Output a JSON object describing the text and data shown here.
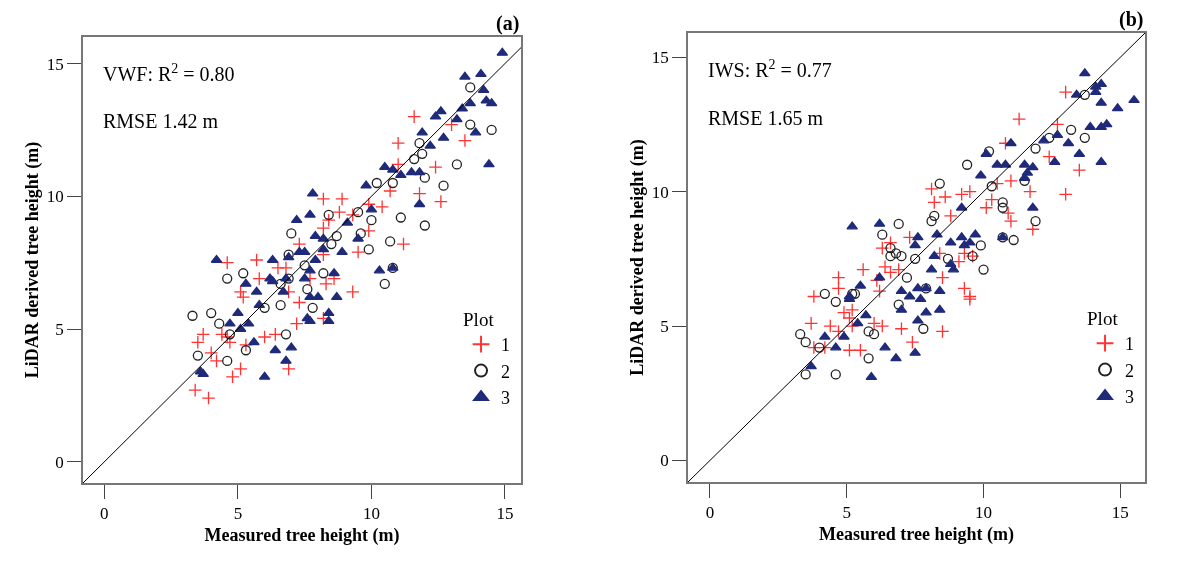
{
  "chart_data": [
    {
      "type": "scatter",
      "title": "(a)",
      "xlabel": "Measured tree height (m)",
      "ylabel": "LiDAR derived tree height (m)",
      "legend_title": "Plot",
      "legend": "bottom right",
      "annotations": [
        "VWF: R$^{2}$ = 0.80",
        "RMSE 1.42 m"
      ],
      "xlim": [
        -0.8,
        15.6
      ],
      "ylim": [
        -0.8,
        16.0
      ],
      "xticks": [
        0,
        5,
        10,
        15
      ],
      "yticks": [
        0,
        5,
        10,
        15
      ],
      "series": [
        {
          "name": "1",
          "color": "#ff3333",
          "marker": "cross",
          "x": [
            11.6,
            11.0,
            13.5,
            13.0,
            12.4,
            11.0,
            10.7,
            11.8,
            12.6,
            8.2,
            8.9,
            9.9,
            10.4,
            8.8,
            9.3,
            8.4,
            8.2,
            9.9,
            11.2,
            9.5,
            7.3,
            8.2,
            4.6,
            5.7,
            6.5,
            6.8,
            7.7,
            5.8,
            8.6,
            5.1,
            9.3,
            6.9,
            5.2,
            7.3,
            8.3,
            3.7,
            3.5,
            4.4,
            4.6,
            4.7,
            5.3,
            6.0,
            6.4,
            7.2,
            8.2,
            4.0,
            4.2,
            5.1,
            4.8,
            6.9,
            3.4,
            3.9
          ],
          "values": [
            13.0,
            12.0,
            12.1,
            12.7,
            11.1,
            11.2,
            10.2,
            10.1,
            9.8,
            9.9,
            9.9,
            9.7,
            9.6,
            9.4,
            9.3,
            9.1,
            8.8,
            8.7,
            8.2,
            7.9,
            8.2,
            7.8,
            7.5,
            7.6,
            7.3,
            7.3,
            6.9,
            6.9,
            6.9,
            6.4,
            6.4,
            6.4,
            6.2,
            6.0,
            6.7,
            4.8,
            4.5,
            4.8,
            4.7,
            4.5,
            4.4,
            4.7,
            4.8,
            5.2,
            5.4,
            4.1,
            3.8,
            3.5,
            3.2,
            3.5,
            2.7,
            2.4
          ]
        },
        {
          "name": "2",
          "color": "#222222",
          "marker": "circle",
          "x": [
            13.7,
            13.7,
            14.5,
            11.8,
            11.9,
            11.6,
            13.2,
            12.0,
            10.8,
            10.2,
            12.7,
            11.1,
            12.0,
            9.5,
            8.4,
            10.0,
            7.0,
            9.6,
            8.7,
            8.5,
            9.9,
            10.7,
            6.9,
            10.8,
            10.5,
            4.6,
            5.2,
            7.5,
            8.2,
            6.9,
            6.6,
            7.6,
            3.3,
            4.0,
            4.3,
            4.7,
            6.0,
            6.6,
            7.8,
            6.8,
            5.3,
            3.5,
            4.6
          ],
          "values": [
            14.1,
            12.7,
            12.5,
            12.0,
            11.6,
            11.4,
            11.2,
            10.7,
            10.5,
            10.5,
            10.4,
            9.2,
            8.9,
            9.4,
            9.3,
            9.1,
            8.6,
            8.6,
            8.5,
            8.2,
            8.0,
            8.3,
            7.8,
            7.3,
            6.7,
            6.9,
            7.1,
            7.4,
            7.1,
            6.9,
            6.7,
            6.5,
            5.5,
            5.6,
            5.2,
            4.8,
            5.8,
            5.9,
            5.8,
            4.8,
            4.2,
            4.0,
            3.8
          ]
        },
        {
          "name": "3",
          "color": "#1f2a7a",
          "marker": "triangle",
          "x": [
            14.9,
            13.5,
            14.1,
            14.2,
            14.3,
            14.5,
            13.7,
            13.4,
            12.4,
            12.6,
            13.2,
            13.9,
            11.9,
            12.2,
            12.7,
            14.4,
            10.5,
            10.8,
            11.1,
            11.5,
            11.8,
            9.8,
            11.8,
            10.0,
            7.8,
            7.2,
            7.7,
            9.1,
            7.9,
            8.2,
            9.5,
            8.2,
            7.5,
            7.3,
            6.9,
            7.9,
            8.9,
            6.3,
            4.2,
            6.2,
            6.8,
            7.7,
            7.5,
            8.6,
            10.3,
            10.8,
            5.7,
            6.7,
            7.7,
            8.0,
            8.7,
            5.3,
            6.3,
            5.8,
            5.0,
            4.7,
            5.4,
            5.1,
            7.6,
            7.7,
            8.4,
            8.4,
            5.6,
            6.4,
            7.0,
            6.8,
            6.0,
            3.6,
            3.7
          ],
          "values": [
            15.4,
            14.5,
            14.6,
            14.0,
            13.6,
            13.5,
            13.5,
            13.3,
            13.0,
            13.2,
            12.9,
            12.4,
            12.4,
            11.9,
            12.2,
            11.2,
            11.1,
            11.0,
            10.8,
            10.9,
            10.9,
            10.4,
            9.7,
            9.5,
            10.1,
            9.1,
            9.3,
            9.0,
            8.5,
            8.4,
            8.4,
            8.0,
            7.9,
            7.9,
            7.7,
            7.6,
            7.9,
            7.6,
            7.6,
            6.9,
            6.9,
            7.2,
            6.9,
            7.1,
            7.2,
            7.3,
            6.4,
            6.4,
            6.2,
            6.2,
            6.2,
            6.7,
            6.8,
            5.9,
            5.6,
            5.2,
            5.2,
            5.0,
            5.4,
            5.3,
            5.6,
            5.3,
            4.5,
            4.2,
            4.3,
            3.8,
            3.2,
            3.4,
            3.3
          ]
        },
        {
          "type": "line",
          "color": "#000000",
          "marker": "none",
          "x": [
            -0.8,
            15.6
          ],
          "values": [
            -0.8,
            15.6
          ]
        }
      ]
    },
    {
      "type": "scatter",
      "title": "(b)",
      "xlabel": "Measured tree height (m)",
      "ylabel": "LiDAR derived tree height (m)",
      "legend_title": "Plot",
      "legend": "bottom right",
      "annotations": [
        "IWS: R$^{2}$ = 0.77",
        "RMSE 1.65 m"
      ],
      "xlim": [
        -0.8,
        15.9
      ],
      "ylim": [
        -0.8,
        15.9
      ],
      "xticks": [
        0,
        5,
        10,
        15
      ],
      "yticks": [
        0,
        5,
        10,
        15
      ],
      "series": [
        {
          "name": "1",
          "color": "#ff3333",
          "marker": "cross",
          "x": [
            13.0,
            11.3,
            12.7,
            10.8,
            12.4,
            13.5,
            11.0,
            10.5,
            11.7,
            13.0,
            8.1,
            8.6,
            9.2,
            9.5,
            8.2,
            10.3,
            10.1,
            8.8,
            10.9,
            11.0,
            11.8,
            7.3,
            6.3,
            6.6,
            9.3,
            8.4,
            9.1,
            9.6,
            5.6,
            6.4,
            6.9,
            4.7,
            6.1,
            6.6,
            8.5,
            9.3,
            3.8,
            6.2,
            9.5,
            4.7,
            9.5,
            4.9,
            5.1,
            5.2,
            3.7,
            4.4,
            4.7,
            5.2,
            6.0,
            6.3,
            7.0,
            8.5,
            7.4,
            3.8,
            4.2,
            5.1,
            5.5
          ],
          "values": [
            13.7,
            12.7,
            12.5,
            11.8,
            11.3,
            10.8,
            10.4,
            10.3,
            10.0,
            9.9,
            10.1,
            9.8,
            9.9,
            10.0,
            9.6,
            9.7,
            9.4,
            9.1,
            9.2,
            8.9,
            8.6,
            8.3,
            7.9,
            8.1,
            7.7,
            7.7,
            7.4,
            7.6,
            7.1,
            7.2,
            7.1,
            6.8,
            6.7,
            7.0,
            6.8,
            6.4,
            6.1,
            6.3,
            6.1,
            6.4,
            6.0,
            5.5,
            5.3,
            5.6,
            5.1,
            5.0,
            4.8,
            5.0,
            5.1,
            5.0,
            4.9,
            4.8,
            4.4,
            4.2,
            4.2,
            4.1,
            4.1
          ]
        },
        {
          "name": "2",
          "color": "#222222",
          "marker": "circle",
          "x": [
            13.7,
            13.2,
            13.7,
            12.4,
            11.9,
            10.2,
            9.4,
            11.5,
            10.3,
            8.4,
            10.7,
            10.7,
            8.2,
            8.1,
            11.9,
            6.9,
            6.3,
            10.7,
            11.1,
            9.9,
            6.6,
            6.8,
            6.6,
            7.0,
            7.5,
            8.7,
            9.6,
            10.0,
            7.2,
            7.9,
            4.2,
            5.2,
            4.6,
            5.3,
            6.9,
            3.3,
            3.5,
            4.0,
            5.8,
            6.0,
            7.8,
            5.8,
            3.5,
            4.6
          ],
          "values": [
            13.6,
            12.3,
            12.0,
            12.0,
            11.6,
            11.5,
            11.0,
            10.4,
            10.2,
            10.3,
            9.6,
            9.4,
            9.1,
            8.9,
            8.9,
            8.8,
            8.4,
            8.3,
            8.2,
            8.0,
            7.9,
            7.7,
            7.6,
            7.6,
            7.5,
            7.5,
            7.6,
            7.1,
            6.8,
            6.4,
            6.2,
            6.2,
            5.9,
            6.2,
            5.8,
            4.7,
            4.4,
            4.2,
            4.8,
            4.7,
            4.9,
            3.8,
            3.2,
            3.2
          ]
        },
        {
          "name": "3",
          "color": "#1f2a7a",
          "marker": "triangle",
          "x": [
            13.7,
            14.3,
            14.1,
            13.4,
            14.1,
            14.3,
            14.9,
            15.5,
            13.9,
            14.3,
            14.5,
            12.7,
            12.2,
            13.1,
            13.5,
            11.0,
            12.6,
            14.3,
            10.1,
            10.5,
            10.8,
            11.5,
            11.8,
            11.6,
            11.5,
            9.9,
            11.8,
            9.2,
            5.2,
            6.2,
            7.6,
            7.5,
            8.3,
            9.2,
            8.8,
            9.3,
            9.5,
            9.7,
            10.7,
            8.2,
            8.8,
            8.9,
            8.1,
            6.2,
            5.5,
            7.0,
            7.6,
            8.4,
            7.9,
            5.1,
            7.3,
            5.1,
            7.0,
            7.7,
            8.4,
            7.9,
            5.7,
            5.4,
            7.6,
            4.2,
            4.9,
            4.6,
            6.4,
            6.8,
            7.5,
            3.7,
            5.9
          ],
          "values": [
            14.4,
            14.0,
            13.9,
            13.6,
            13.7,
            13.3,
            13.1,
            13.4,
            12.4,
            12.4,
            12.5,
            12.1,
            11.9,
            11.8,
            11.4,
            11.8,
            11.1,
            11.1,
            11.4,
            11.0,
            11.0,
            11.0,
            10.9,
            10.7,
            10.5,
            10.6,
            9.4,
            9.4,
            8.7,
            8.8,
            8.3,
            8.0,
            8.4,
            8.3,
            8.1,
            8.0,
            8.1,
            8.4,
            8.3,
            7.6,
            7.3,
            7.1,
            7.1,
            6.8,
            6.5,
            6.3,
            6.4,
            6.3,
            6.4,
            6.1,
            6.1,
            6.0,
            5.6,
            6.0,
            5.6,
            5.5,
            5.4,
            5.1,
            5.2,
            4.6,
            4.6,
            4.2,
            4.2,
            3.8,
            4.0,
            3.5,
            3.1
          ]
        },
        {
          "type": "line",
          "color": "#000000",
          "marker": "none",
          "x": [
            -0.8,
            15.9
          ],
          "values": [
            -0.8,
            15.9
          ]
        }
      ]
    }
  ]
}
